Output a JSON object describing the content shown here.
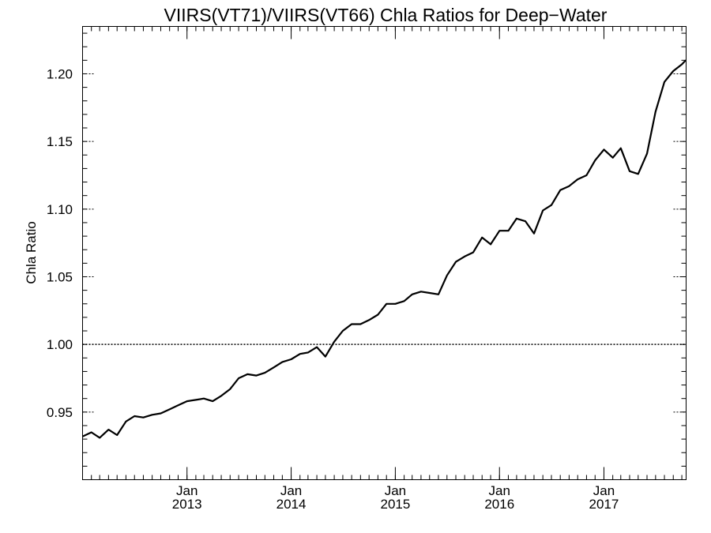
{
  "chart_data": {
    "type": "line",
    "title": "VIIRS(VT71)/VIIRS(VT66)  Chla Ratios for Deep−Water",
    "xlabel": "",
    "ylabel": "Chla Ratio",
    "xlim": [
      "2012-01-01",
      "2017-10-16"
    ],
    "ylim": [
      0.9,
      1.235
    ],
    "yticks": [
      {
        "value": 0.95,
        "label": "0.95"
      },
      {
        "value": 1.0,
        "label": "1.00"
      },
      {
        "value": 1.05,
        "label": "1.05"
      },
      {
        "value": 1.1,
        "label": "1.10"
      },
      {
        "value": 1.15,
        "label": "1.15"
      },
      {
        "value": 1.2,
        "label": "1.20"
      }
    ],
    "xticks": [
      {
        "date": "2013-01-01",
        "month": "Jan",
        "year": "2013"
      },
      {
        "date": "2014-01-01",
        "month": "Jan",
        "year": "2014"
      },
      {
        "date": "2015-01-01",
        "month": "Jan",
        "year": "2015"
      },
      {
        "date": "2016-01-01",
        "month": "Jan",
        "year": "2016"
      },
      {
        "date": "2017-01-01",
        "month": "Jan",
        "year": "2017"
      }
    ],
    "reference_line": {
      "y": 1.0,
      "style": "dotted"
    },
    "grid": false,
    "line_color": "#000000",
    "x": [
      "2012-01-01",
      "2012-02-01",
      "2012-03-01",
      "2012-04-01",
      "2012-05-01",
      "2012-06-01",
      "2012-07-01",
      "2012-08-01",
      "2012-09-01",
      "2012-10-01",
      "2012-11-01",
      "2012-12-01",
      "2013-01-01",
      "2013-02-01",
      "2013-03-01",
      "2013-04-01",
      "2013-05-01",
      "2013-06-01",
      "2013-07-01",
      "2013-08-01",
      "2013-09-01",
      "2013-10-01",
      "2013-11-01",
      "2013-12-01",
      "2014-01-01",
      "2014-02-01",
      "2014-03-01",
      "2014-04-01",
      "2014-05-01",
      "2014-06-01",
      "2014-07-01",
      "2014-08-01",
      "2014-09-01",
      "2014-10-01",
      "2014-11-01",
      "2014-12-01",
      "2015-01-01",
      "2015-02-01",
      "2015-03-01",
      "2015-04-01",
      "2015-05-01",
      "2015-06-01",
      "2015-07-01",
      "2015-08-01",
      "2015-09-01",
      "2015-10-01",
      "2015-11-01",
      "2015-12-01",
      "2016-01-01",
      "2016-02-01",
      "2016-03-01",
      "2016-04-01",
      "2016-05-01",
      "2016-06-01",
      "2016-07-01",
      "2016-08-01",
      "2016-09-01",
      "2016-10-01",
      "2016-11-01",
      "2016-12-01",
      "2017-01-01",
      "2017-02-01",
      "2017-03-01",
      "2017-04-01",
      "2017-05-01",
      "2017-06-01",
      "2017-07-01",
      "2017-08-01",
      "2017-09-01",
      "2017-10-01",
      "2017-10-15"
    ],
    "y": [
      0.932,
      0.935,
      0.931,
      0.937,
      0.933,
      0.943,
      0.947,
      0.946,
      0.948,
      0.949,
      0.952,
      0.955,
      0.958,
      0.959,
      0.96,
      0.958,
      0.962,
      0.967,
      0.975,
      0.978,
      0.977,
      0.979,
      0.983,
      0.987,
      0.989,
      0.993,
      0.994,
      0.998,
      0.991,
      1.002,
      1.01,
      1.015,
      1.015,
      1.018,
      1.022,
      1.03,
      1.03,
      1.032,
      1.037,
      1.039,
      1.038,
      1.037,
      1.051,
      1.061,
      1.065,
      1.068,
      1.079,
      1.074,
      1.084,
      1.084,
      1.093,
      1.091,
      1.082,
      1.099,
      1.103,
      1.114,
      1.117,
      1.122,
      1.125,
      1.136,
      1.144,
      1.138,
      1.145,
      1.128,
      1.126,
      1.141,
      1.172,
      1.194,
      1.202,
      1.207,
      1.21
    ]
  }
}
